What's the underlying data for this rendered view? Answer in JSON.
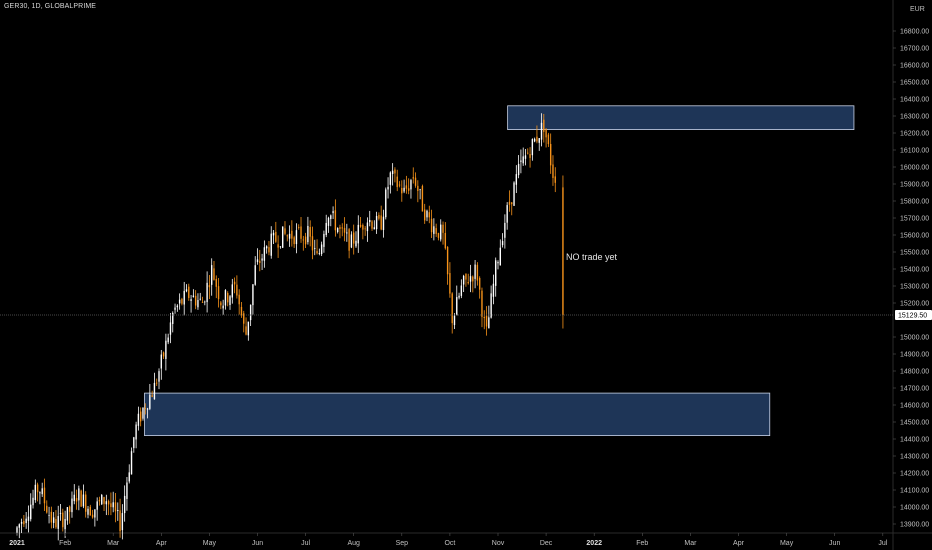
{
  "header": {
    "title": "GER30, 1D, GLOBALPRIME",
    "currency": "EUR"
  },
  "annotation": {
    "text": "NO trade yet"
  },
  "colors": {
    "background": "#000000",
    "up_candle": "#ffffff",
    "down_candle": "#f7931a",
    "zone_fill": "#1e3557",
    "zone_border": "#c8d2e6",
    "price_line": "#606060",
    "price_tag_bg": "#ffffff"
  },
  "chart_data": {
    "type": "candlestick",
    "ylim": [
      13800,
      16900
    ],
    "y_ticks": [
      13900,
      14000,
      14100,
      14200,
      14300,
      14400,
      14500,
      14600,
      14700,
      14800,
      14900,
      15000,
      15100,
      15200,
      15300,
      15400,
      15500,
      15600,
      15700,
      15800,
      15900,
      16000,
      16100,
      16200,
      16300,
      16400,
      16500,
      16600,
      16700,
      16800
    ],
    "current_price": 15129.5,
    "current_price_label": "15129.50",
    "x_labels": [
      {
        "label": "2021",
        "month": 0,
        "bold": true
      },
      {
        "label": "Feb",
        "month": 1,
        "bold": false
      },
      {
        "label": "Mar",
        "month": 2,
        "bold": false
      },
      {
        "label": "Apr",
        "month": 3,
        "bold": false
      },
      {
        "label": "May",
        "month": 4,
        "bold": false
      },
      {
        "label": "Jun",
        "month": 5,
        "bold": false
      },
      {
        "label": "Jul",
        "month": 6,
        "bold": false
      },
      {
        "label": "Aug",
        "month": 7,
        "bold": false
      },
      {
        "label": "Sep",
        "month": 8,
        "bold": false
      },
      {
        "label": "Oct",
        "month": 9,
        "bold": false
      },
      {
        "label": "Nov",
        "month": 10,
        "bold": false
      },
      {
        "label": "Dec",
        "month": 11,
        "bold": false
      },
      {
        "label": "2022",
        "month": 12,
        "bold": true
      },
      {
        "label": "Feb",
        "month": 13,
        "bold": false
      },
      {
        "label": "Mar",
        "month": 14,
        "bold": false
      },
      {
        "label": "Apr",
        "month": 15,
        "bold": false
      },
      {
        "label": "May",
        "month": 16,
        "bold": false
      },
      {
        "label": "Jun",
        "month": 17,
        "bold": false
      },
      {
        "label": "Jul",
        "month": 18,
        "bold": false
      }
    ],
    "zones": [
      {
        "name": "supply-zone",
        "from_month": 10.2,
        "to_month": 17.4,
        "low": 16220,
        "high": 16360
      },
      {
        "name": "demand-zone",
        "from_month": 2.65,
        "to_month": 15.65,
        "low": 14420,
        "high": 14670
      }
    ],
    "price_path": [
      [
        0.0,
        13850
      ],
      [
        0.3,
        14000
      ],
      [
        0.5,
        14120
      ],
      [
        0.8,
        13900
      ],
      [
        1.1,
        13950
      ],
      [
        1.3,
        14080
      ],
      [
        1.6,
        13980
      ],
      [
        1.9,
        14050
      ],
      [
        2.2,
        13900
      ],
      [
        2.3,
        14100
      ],
      [
        2.5,
        14450
      ],
      [
        2.7,
        14600
      ],
      [
        2.9,
        14700
      ],
      [
        3.1,
        14900
      ],
      [
        3.3,
        15150
      ],
      [
        3.6,
        15250
      ],
      [
        3.9,
        15200
      ],
      [
        4.1,
        15400
      ],
      [
        4.3,
        15200
      ],
      [
        4.6,
        15300
      ],
      [
        4.8,
        15000
      ],
      [
        5.0,
        15400
      ],
      [
        5.3,
        15550
      ],
      [
        5.6,
        15600
      ],
      [
        5.9,
        15600
      ],
      [
        6.1,
        15600
      ],
      [
        6.3,
        15450
      ],
      [
        6.5,
        15750
      ],
      [
        6.8,
        15600
      ],
      [
        7.0,
        15550
      ],
      [
        7.3,
        15700
      ],
      [
        7.6,
        15650
      ],
      [
        7.8,
        15950
      ],
      [
        8.1,
        15850
      ],
      [
        8.3,
        15950
      ],
      [
        8.5,
        15750
      ],
      [
        8.7,
        15650
      ],
      [
        8.9,
        15600
      ],
      [
        9.1,
        15100
      ],
      [
        9.3,
        15300
      ],
      [
        9.6,
        15400
      ],
      [
        9.8,
        15000
      ],
      [
        10.0,
        15400
      ],
      [
        10.2,
        15700
      ],
      [
        10.5,
        16000
      ],
      [
        10.8,
        16150
      ],
      [
        11.0,
        16250
      ],
      [
        11.2,
        15950
      ]
    ],
    "last_candle": {
      "month": 11.35,
      "open": 15880,
      "high": 15950,
      "low": 15050,
      "close": 15129.5
    }
  }
}
